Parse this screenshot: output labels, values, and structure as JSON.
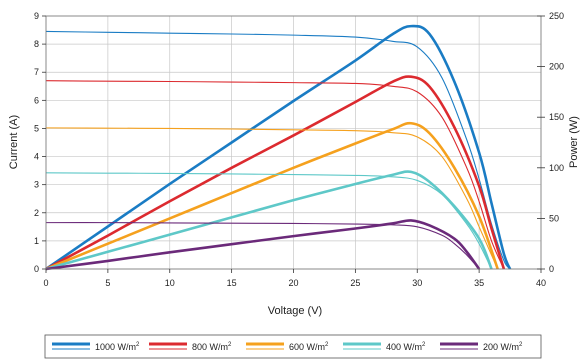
{
  "chart_data": {
    "type": "line",
    "xlabel": "Voltage (V)",
    "ylabel": "Current (A)",
    "y2label": "Power (W)",
    "xlim": [
      0,
      40
    ],
    "ylim": [
      0,
      9
    ],
    "y2lim": [
      0,
      250
    ],
    "xticks": [
      0,
      5,
      10,
      15,
      20,
      25,
      30,
      35,
      40
    ],
    "yticks": [
      0,
      1,
      2,
      3,
      4,
      5,
      6,
      7,
      8,
      9
    ],
    "y2ticks": [
      0,
      50,
      100,
      150,
      200,
      250
    ],
    "grid": true,
    "legend_position": "bottom",
    "series": [
      {
        "name": "1000 W/m",
        "name_sup": "2",
        "color": "#1a7cc4",
        "current": {
          "x": [
            0,
            5,
            10,
            15,
            20,
            25,
            28,
            30,
            32,
            34,
            35,
            36,
            37,
            37.5
          ],
          "y": [
            8.45,
            8.42,
            8.39,
            8.36,
            8.32,
            8.25,
            8.1,
            7.9,
            6.8,
            4.6,
            3.2,
            1.6,
            0.3,
            0
          ]
        },
        "power": {
          "x": [
            0,
            5,
            10,
            15,
            20,
            25,
            28,
            29.5,
            31,
            33,
            35,
            36,
            37,
            37.5
          ],
          "y": [
            0,
            42,
            84,
            125,
            166,
            206,
            232,
            240,
            232,
            185,
            115,
            65,
            15,
            0
          ]
        }
      },
      {
        "name": "800 W/m",
        "name_sup": "2",
        "color": "#dc2a2f",
        "current": {
          "x": [
            0,
            5,
            10,
            15,
            20,
            25,
            28,
            30,
            32,
            34,
            35,
            36,
            37
          ],
          "y": [
            6.7,
            6.68,
            6.67,
            6.65,
            6.63,
            6.6,
            6.5,
            6.3,
            5.4,
            3.6,
            2.4,
            1.0,
            0
          ]
        },
        "power": {
          "x": [
            0,
            5,
            10,
            15,
            20,
            25,
            28,
            29.5,
            31,
            33,
            35,
            36,
            37
          ],
          "y": [
            0,
            33,
            67,
            100,
            132,
            165,
            185,
            190,
            180,
            140,
            82,
            40,
            0
          ]
        }
      },
      {
        "name": "600 W/m",
        "name_sup": "2",
        "color": "#f5a11e",
        "current": {
          "x": [
            0,
            5,
            10,
            15,
            20,
            25,
            28,
            30,
            32,
            34,
            35,
            36.5
          ],
          "y": [
            5.02,
            5.01,
            5.0,
            4.98,
            4.95,
            4.92,
            4.85,
            4.7,
            4.0,
            2.5,
            1.5,
            0
          ]
        },
        "power": {
          "x": [
            0,
            5,
            10,
            15,
            20,
            25,
            28,
            29.5,
            31,
            33,
            35,
            36.5
          ],
          "y": [
            0,
            25,
            50,
            75,
            100,
            124,
            138,
            144,
            134,
            100,
            52,
            0
          ]
        }
      },
      {
        "name": "400 W/m",
        "name_sup": "2",
        "color": "#5ec8c8",
        "current": {
          "x": [
            0,
            5,
            10,
            15,
            20,
            25,
            28,
            30,
            32,
            34,
            35,
            36
          ],
          "y": [
            3.42,
            3.41,
            3.4,
            3.38,
            3.36,
            3.33,
            3.28,
            3.15,
            2.65,
            1.6,
            0.9,
            0
          ]
        },
        "power": {
          "x": [
            0,
            5,
            10,
            15,
            20,
            25,
            28,
            29.5,
            31,
            33,
            35,
            36
          ],
          "y": [
            0,
            17,
            34,
            51,
            68,
            84,
            93,
            96,
            86,
            62,
            30,
            0
          ]
        }
      },
      {
        "name": "200 W/m",
        "name_sup": "2",
        "color": "#6b2a7a",
        "current": {
          "x": [
            0,
            5,
            10,
            15,
            20,
            25,
            28,
            30,
            32,
            33,
            34,
            35
          ],
          "y": [
            1.65,
            1.65,
            1.64,
            1.63,
            1.62,
            1.6,
            1.57,
            1.5,
            1.2,
            0.9,
            0.5,
            0
          ]
        },
        "power": {
          "x": [
            0,
            5,
            10,
            15,
            20,
            25,
            28,
            29.5,
            31,
            33,
            34,
            35
          ],
          "y": [
            0,
            8,
            16.5,
            24.5,
            32.5,
            40,
            45,
            48,
            43,
            30,
            17,
            0
          ]
        }
      }
    ]
  }
}
